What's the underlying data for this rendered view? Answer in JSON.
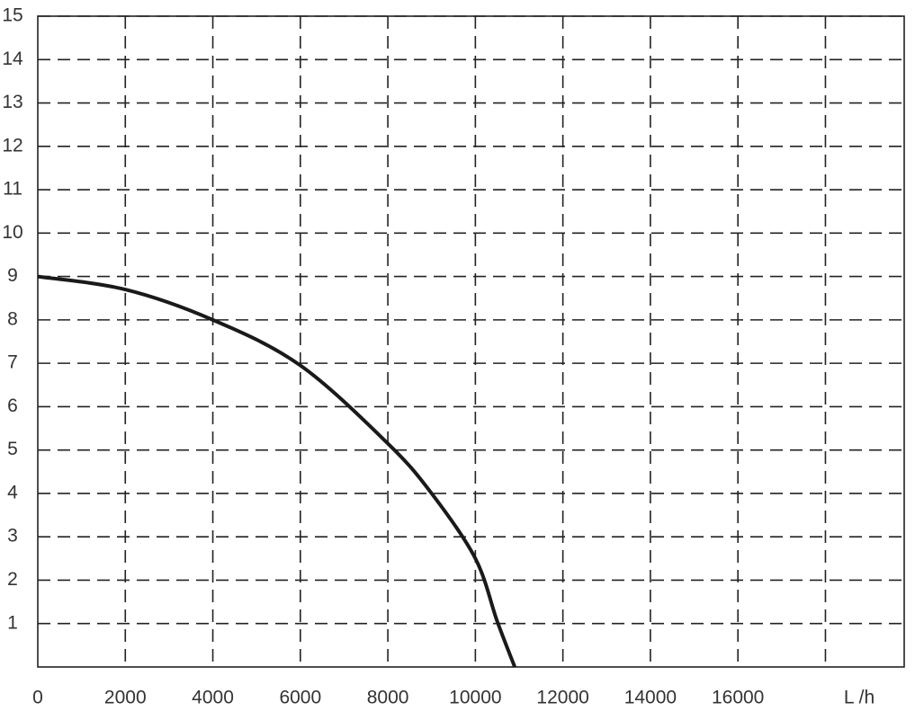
{
  "chart_data": {
    "type": "line",
    "x_label": "L /h",
    "x": [
      0,
      2000,
      4000,
      6000,
      8000,
      9000,
      10000,
      10500,
      10900
    ],
    "series": [
      {
        "color": "#1a1a1a",
        "values": [
          9,
          8.7,
          8,
          6.95,
          5.15,
          4,
          2.5,
          1.05,
          0
        ]
      }
    ],
    "xlim": [
      0,
      19800
    ],
    "xticks": [
      0,
      2000,
      4000,
      6000,
      8000,
      10000,
      12000,
      14000,
      16000
    ],
    "x_unlabeled_ticks": [
      18000
    ],
    "ylim": [
      0,
      15
    ],
    "yticks": [
      1,
      2,
      3,
      4,
      5,
      6,
      7,
      8,
      9,
      10,
      11,
      12,
      13,
      14,
      15
    ],
    "grid": true
  }
}
